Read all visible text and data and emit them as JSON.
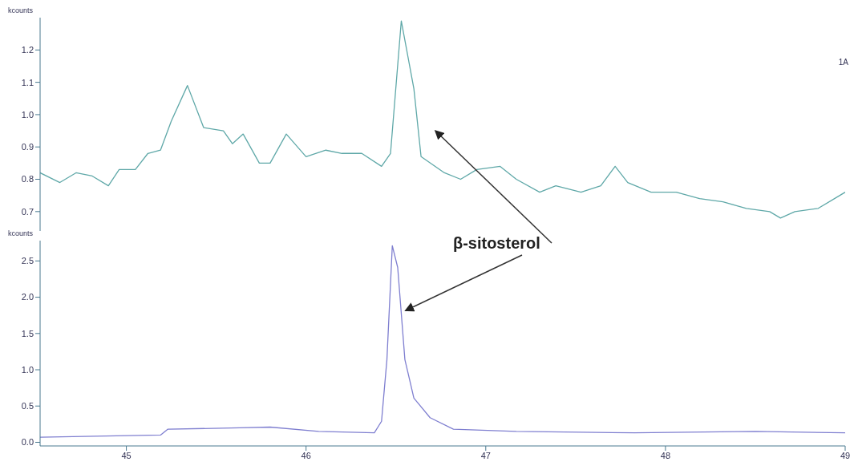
{
  "chart_data": [
    {
      "type": "line",
      "ylabel": "kcounts",
      "xlim": [
        44.52,
        49.0
      ],
      "ylim": [
        0.64,
        1.3
      ],
      "yticks": [
        0.7,
        0.8,
        0.9,
        {
          "value": 1,
          "label": "1.0"
        },
        1.1,
        1.2
      ],
      "tick_labels": "y",
      "marker": "none",
      "annotations": [
        "1A"
      ],
      "series": [
        {
          "color": "#5fa8a8",
          "x": [
            44.52,
            44.63,
            44.72,
            44.81,
            44.9,
            44.96,
            45.05,
            45.12,
            45.19,
            45.25,
            45.34,
            45.43,
            45.54,
            45.59,
            45.65,
            45.74,
            45.8,
            45.89,
            46.0,
            46.11,
            46.2,
            46.31,
            46.42,
            46.47,
            46.53,
            46.6,
            46.64,
            46.77,
            46.86,
            46.95,
            47.08,
            47.17,
            47.3,
            47.39,
            47.53,
            47.64,
            47.72,
            47.79,
            47.92,
            48.06,
            48.19,
            48.32,
            48.45,
            48.58,
            48.64,
            48.72,
            48.85,
            49.0
          ],
          "values": [
            0.82,
            0.79,
            0.82,
            0.81,
            0.78,
            0.83,
            0.83,
            0.88,
            0.89,
            0.98,
            1.09,
            0.96,
            0.95,
            0.91,
            0.94,
            0.85,
            0.85,
            0.94,
            0.87,
            0.89,
            0.88,
            0.88,
            0.84,
            0.88,
            1.29,
            1.08,
            0.87,
            0.82,
            0.8,
            0.83,
            0.84,
            0.8,
            0.76,
            0.78,
            0.76,
            0.78,
            0.84,
            0.79,
            0.76,
            0.76,
            0.74,
            0.73,
            0.71,
            0.7,
            0.68,
            0.7,
            0.71,
            0.76
          ]
        }
      ]
    },
    {
      "type": "line",
      "ylabel": "kcounts",
      "xlim": [
        44.52,
        49.0
      ],
      "ylim": [
        -0.05,
        2.78
      ],
      "xticks": [
        45,
        46,
        47,
        48,
        49
      ],
      "yticks": [
        {
          "value": 0,
          "label": "0.0"
        },
        0.5,
        {
          "value": 1,
          "label": "1.0"
        },
        1.5,
        {
          "value": 2,
          "label": "2.0"
        },
        2.5
      ],
      "marker": "none",
      "annotations": [
        {
          "text": "β-sitosterol",
          "x": 46.55,
          "y": 1.8
        }
      ],
      "series": [
        {
          "color": "#7f7fd0",
          "x": [
            44.52,
            45.19,
            45.23,
            45.63,
            45.8,
            46.07,
            46.38,
            46.42,
            46.45,
            46.48,
            46.51,
            46.55,
            46.6,
            46.69,
            46.82,
            47.17,
            47.83,
            48.5,
            49.0
          ],
          "values": [
            0.07,
            0.1,
            0.18,
            0.2,
            0.21,
            0.15,
            0.13,
            0.29,
            1.14,
            2.71,
            2.41,
            1.14,
            0.61,
            0.34,
            0.18,
            0.15,
            0.13,
            0.15,
            0.13
          ]
        }
      ]
    }
  ]
}
